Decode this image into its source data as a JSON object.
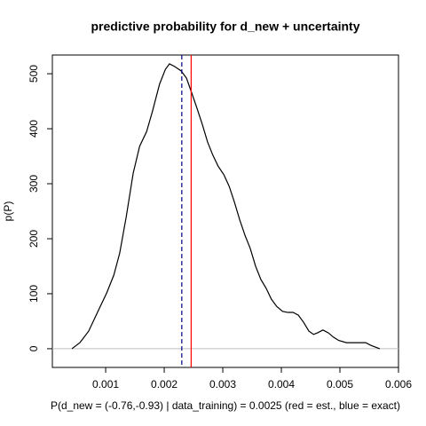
{
  "chart_data": {
    "type": "line",
    "title": "predictive probability for d_new + uncertainty",
    "xlabel": "P(d_new = (-0.76,-0.93) | data_training) = 0.0025 (red = est., blue = exact)",
    "ylabel": "p(P)",
    "x": [
      0.000424,
      0.00056,
      0.00071,
      0.00086,
      0.00102,
      0.00114,
      0.00124,
      0.00135,
      0.00147,
      0.00158,
      0.0017,
      0.0018,
      0.00192,
      0.00202,
      0.00209,
      0.00218,
      0.00229,
      0.00238,
      0.00247,
      0.00256,
      0.00265,
      0.00274,
      0.00283,
      0.00292,
      0.00302,
      0.00311,
      0.0032,
      0.00329,
      0.00338,
      0.00347,
      0.00356,
      0.00365,
      0.00374,
      0.00383,
      0.00392,
      0.00402,
      0.00411,
      0.0042,
      0.00429,
      0.00438,
      0.00447,
      0.00455,
      0.00462,
      0.00471,
      0.0048,
      0.00489,
      0.00498,
      0.00511,
      0.00523,
      0.00535,
      0.00544,
      0.00553,
      0.00568
    ],
    "series": [
      {
        "color": "#000000",
        "values": [
          0,
          11,
          32,
          66,
          102,
          134,
          174,
          239,
          319,
          368,
          395,
          432,
          481,
          508,
          518,
          513,
          505,
          492,
          465,
          437,
          408,
          376,
          352,
          332,
          316,
          295,
          266,
          234,
          206,
          182,
          150,
          126,
          110,
          90,
          77,
          68,
          66,
          66,
          61,
          48,
          32,
          26,
          29,
          34,
          29,
          21,
          15,
          11,
          11,
          11,
          11,
          6,
          0
        ]
      }
    ],
    "vlines": [
      {
        "value": 0.00246,
        "color": "#ff0000",
        "style": "solid"
      },
      {
        "value": 0.0023,
        "color": "#00008b",
        "style": "dashed"
      }
    ],
    "hlines": [
      {
        "value": 0,
        "color": "#bebebe"
      }
    ],
    "xlim": [
      9e-05,
      0.006
    ],
    "ylim": [
      -34,
      534
    ],
    "xticks": [
      0.001,
      0.002,
      0.003,
      0.004,
      0.005,
      0.006
    ],
    "yticks": [
      0,
      100,
      200,
      300,
      400,
      500
    ]
  }
}
